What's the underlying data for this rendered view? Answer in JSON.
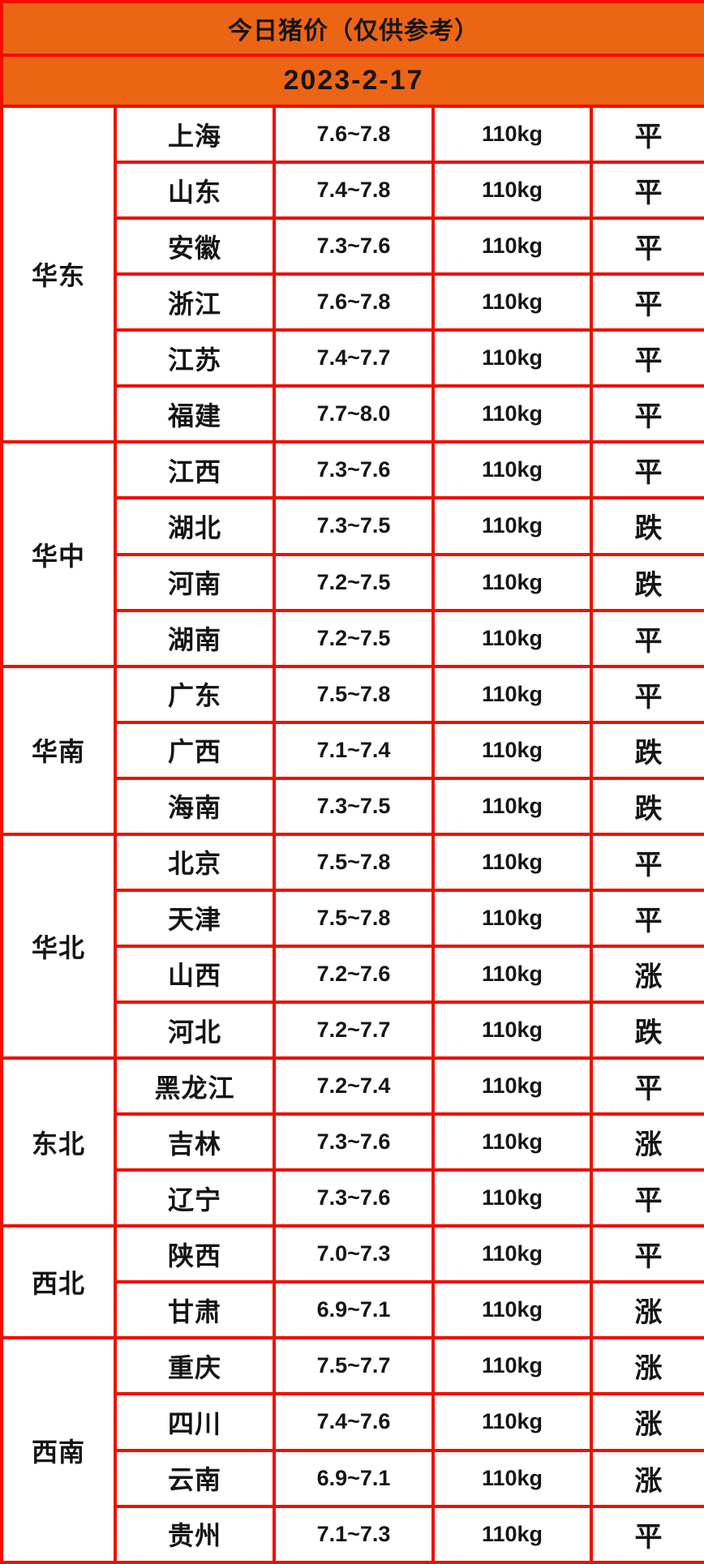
{
  "header": {
    "title": "今日猪价（仅供参考）",
    "date": "2023-2-17"
  },
  "colors": {
    "header_bg": "#ec6514",
    "border": "#f20d00",
    "text": "#151515",
    "trend_up": "#f03049",
    "trend_down": "#1dc617",
    "trend_flat": "#151515"
  },
  "table": {
    "regions": [
      {
        "name": "华东",
        "rows": [
          {
            "province": "上海",
            "price": "7.6~7.8",
            "weight": "110kg",
            "status": "平",
            "trend": "flat"
          },
          {
            "province": "山东",
            "price": "7.4~7.8",
            "weight": "110kg",
            "status": "平",
            "trend": "flat"
          },
          {
            "province": "安徽",
            "price": "7.3~7.6",
            "weight": "110kg",
            "status": "平",
            "trend": "flat"
          },
          {
            "province": "浙江",
            "price": "7.6~7.8",
            "weight": "110kg",
            "status": "平",
            "trend": "flat"
          },
          {
            "province": "江苏",
            "price": "7.4~7.7",
            "weight": "110kg",
            "status": "平",
            "trend": "flat"
          },
          {
            "province": "福建",
            "price": "7.7~8.0",
            "weight": "110kg",
            "status": "平",
            "trend": "flat"
          }
        ]
      },
      {
        "name": "华中",
        "rows": [
          {
            "province": "江西",
            "price": "7.3~7.6",
            "weight": "110kg",
            "status": "平",
            "trend": "flat"
          },
          {
            "province": "湖北",
            "price": "7.3~7.5",
            "weight": "110kg",
            "status": "跌",
            "trend": "down"
          },
          {
            "province": "河南",
            "price": "7.2~7.5",
            "weight": "110kg",
            "status": "跌",
            "trend": "down"
          },
          {
            "province": "湖南",
            "price": "7.2~7.5",
            "weight": "110kg",
            "status": "平",
            "trend": "flat"
          }
        ]
      },
      {
        "name": "华南",
        "rows": [
          {
            "province": "广东",
            "price": "7.5~7.8",
            "weight": "110kg",
            "status": "平",
            "trend": "flat"
          },
          {
            "province": "广西",
            "price": "7.1~7.4",
            "weight": "110kg",
            "status": "跌",
            "trend": "down"
          },
          {
            "province": "海南",
            "price": "7.3~7.5",
            "weight": "110kg",
            "status": "跌",
            "trend": "down"
          }
        ]
      },
      {
        "name": "华北",
        "rows": [
          {
            "province": "北京",
            "price": "7.5~7.8",
            "weight": "110kg",
            "status": "平",
            "trend": "flat"
          },
          {
            "province": "天津",
            "price": "7.5~7.8",
            "weight": "110kg",
            "status": "平",
            "trend": "flat"
          },
          {
            "province": "山西",
            "price": "7.2~7.6",
            "weight": "110kg",
            "status": "涨",
            "trend": "up"
          },
          {
            "province": "河北",
            "price": "7.2~7.7",
            "weight": "110kg",
            "status": "跌",
            "trend": "down"
          }
        ]
      },
      {
        "name": "东北",
        "rows": [
          {
            "province": "黑龙江",
            "price": "7.2~7.4",
            "weight": "110kg",
            "status": "平",
            "trend": "flat"
          },
          {
            "province": "吉林",
            "price": "7.3~7.6",
            "weight": "110kg",
            "status": "涨",
            "trend": "up"
          },
          {
            "province": "辽宁",
            "price": "7.3~7.6",
            "weight": "110kg",
            "status": "平",
            "trend": "flat"
          }
        ]
      },
      {
        "name": "西北",
        "rows": [
          {
            "province": "陕西",
            "price": "7.0~7.3",
            "weight": "110kg",
            "status": "平",
            "trend": "flat"
          },
          {
            "province": "甘肃",
            "price": "6.9~7.1",
            "weight": "110kg",
            "status": "涨",
            "trend": "up"
          }
        ]
      },
      {
        "name": "西南",
        "rows": [
          {
            "province": "重庆",
            "price": "7.5~7.7",
            "weight": "110kg",
            "status": "涨",
            "trend": "up"
          },
          {
            "province": "四川",
            "price": "7.4~7.6",
            "weight": "110kg",
            "status": "涨",
            "trend": "up"
          },
          {
            "province": "云南",
            "price": "6.9~7.1",
            "weight": "110kg",
            "status": "涨",
            "trend": "up"
          },
          {
            "province": "贵州",
            "price": "7.1~7.3",
            "weight": "110kg",
            "status": "平",
            "trend": "flat"
          }
        ]
      }
    ]
  },
  "chart_data": {
    "type": "table",
    "title": "今日猪价（仅供参考）",
    "subtitle": "2023-2-17",
    "columns": [
      "region",
      "province",
      "price_range",
      "weight",
      "trend"
    ],
    "rows": [
      [
        "华东",
        "上海",
        "7.6~7.8",
        "110kg",
        "平"
      ],
      [
        "华东",
        "山东",
        "7.4~7.8",
        "110kg",
        "平"
      ],
      [
        "华东",
        "安徽",
        "7.3~7.6",
        "110kg",
        "平"
      ],
      [
        "华东",
        "浙江",
        "7.6~7.8",
        "110kg",
        "平"
      ],
      [
        "华东",
        "江苏",
        "7.4~7.7",
        "110kg",
        "平"
      ],
      [
        "华东",
        "福建",
        "7.7~8.0",
        "110kg",
        "平"
      ],
      [
        "华中",
        "江西",
        "7.3~7.6",
        "110kg",
        "平"
      ],
      [
        "华中",
        "湖北",
        "7.3~7.5",
        "110kg",
        "跌"
      ],
      [
        "华中",
        "河南",
        "7.2~7.5",
        "110kg",
        "跌"
      ],
      [
        "华中",
        "湖南",
        "7.2~7.5",
        "110kg",
        "平"
      ],
      [
        "华南",
        "广东",
        "7.5~7.8",
        "110kg",
        "平"
      ],
      [
        "华南",
        "广西",
        "7.1~7.4",
        "110kg",
        "跌"
      ],
      [
        "华南",
        "海南",
        "7.3~7.5",
        "110kg",
        "跌"
      ],
      [
        "华北",
        "北京",
        "7.5~7.8",
        "110kg",
        "平"
      ],
      [
        "华北",
        "天津",
        "7.5~7.8",
        "110kg",
        "平"
      ],
      [
        "华北",
        "山西",
        "7.2~7.6",
        "110kg",
        "涨"
      ],
      [
        "华北",
        "河北",
        "7.2~7.7",
        "110kg",
        "跌"
      ],
      [
        "东北",
        "黑龙江",
        "7.2~7.4",
        "110kg",
        "平"
      ],
      [
        "东北",
        "吉林",
        "7.3~7.6",
        "110kg",
        "涨"
      ],
      [
        "东北",
        "辽宁",
        "7.3~7.6",
        "110kg",
        "平"
      ],
      [
        "西北",
        "陕西",
        "7.0~7.3",
        "110kg",
        "平"
      ],
      [
        "西北",
        "甘肃",
        "6.9~7.1",
        "110kg",
        "涨"
      ],
      [
        "西南",
        "重庆",
        "7.5~7.7",
        "110kg",
        "涨"
      ],
      [
        "西南",
        "四川",
        "7.4~7.6",
        "110kg",
        "涨"
      ],
      [
        "西南",
        "云南",
        "6.9~7.1",
        "110kg",
        "涨"
      ],
      [
        "西南",
        "贵州",
        "7.1~7.3",
        "110kg",
        "平"
      ]
    ]
  }
}
